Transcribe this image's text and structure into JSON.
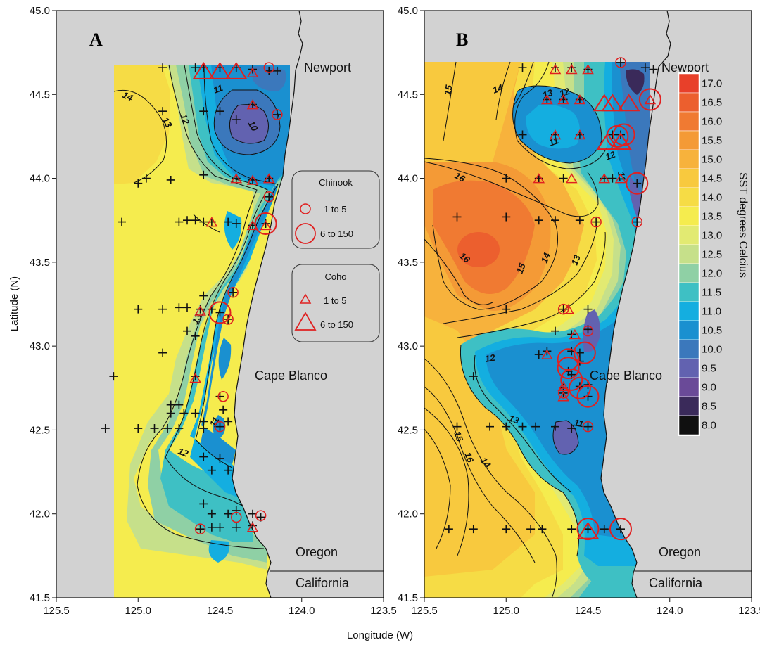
{
  "axes": {
    "x_label": "Longitude (W)",
    "y_label": "Latitude (N)",
    "x_ticks": [
      "125.5",
      "125.0",
      "124.5",
      "124.0",
      "123.5"
    ],
    "y_ticks": [
      "45.0",
      "44.5",
      "44.0",
      "43.5",
      "43.0",
      "42.5",
      "42.0",
      "41.5"
    ]
  },
  "panels": {
    "a": "A",
    "b": "B"
  },
  "places": {
    "newport": "Newport",
    "cape_blanco": "Cape Blanco",
    "oregon": "Oregon",
    "california": "California"
  },
  "legend": {
    "chinook_title": "Chinook",
    "chinook_small": "1 to 5",
    "chinook_large": "6 to 150",
    "coho_title": "Coho",
    "coho_small": "1 to 5",
    "coho_large": "6 to 150"
  },
  "colorbar": {
    "title": "SST degrees Celcius",
    "labels": [
      "17.0",
      "16.5",
      "16.0",
      "15.5",
      "15.0",
      "14.5",
      "14.0",
      "13.5",
      "13.0",
      "12.5",
      "12.0",
      "11.5",
      "11.0",
      "10.5",
      "10.0",
      "9.5",
      "9.0",
      "8.5",
      "8.0"
    ],
    "colors": [
      "#e8402a",
      "#ec5f2e",
      "#f07a32",
      "#f49a36",
      "#f7b23c",
      "#f8c93e",
      "#f6dc45",
      "#f5ec4e",
      "#e2ea72",
      "#c6e08a",
      "#8fd0a5",
      "#3ec0c4",
      "#14aee0",
      "#1a90d0",
      "#3b78bc",
      "#6262b0",
      "#6a4a98",
      "#3a2a5a",
      "#101010"
    ]
  },
  "panel_a_contours": [
    "14",
    "13",
    "12",
    "11",
    "10",
    "13",
    "11",
    "12",
    "13"
  ],
  "panel_b_contours": [
    "15",
    "14",
    "13",
    "12",
    "11",
    "12",
    "11",
    "16",
    "16",
    "15",
    "14",
    "13",
    "12",
    "13",
    "14",
    "15",
    "16",
    "11"
  ],
  "chart_data": {
    "type": "scatter",
    "xlabel": "Longitude (W)",
    "ylabel": "Latitude (N)",
    "xlim": [
      125.5,
      123.5
    ],
    "ylim": [
      41.5,
      45.0
    ],
    "panels": [
      {
        "name": "A",
        "stations": [
          [
            124.65,
            44.66
          ],
          [
            124.6,
            44.66
          ],
          [
            124.5,
            44.66
          ],
          [
            124.4,
            44.66
          ],
          [
            124.3,
            44.65
          ],
          [
            124.2,
            44.64
          ],
          [
            124.15,
            44.64
          ],
          [
            124.6,
            44.4
          ],
          [
            124.5,
            44.4
          ],
          [
            124.4,
            44.35
          ],
          [
            124.3,
            44.44
          ],
          [
            124.15,
            44.38
          ],
          [
            124.85,
            44.66
          ],
          [
            124.85,
            44.4
          ],
          [
            124.8,
            43.99
          ],
          [
            124.95,
            44.0
          ],
          [
            125.0,
            43.97
          ],
          [
            124.6,
            44.02
          ],
          [
            124.4,
            44.0
          ],
          [
            124.3,
            43.99
          ],
          [
            124.2,
            44.0
          ],
          [
            125.1,
            43.74
          ],
          [
            124.75,
            43.74
          ],
          [
            124.7,
            43.75
          ],
          [
            124.65,
            43.75
          ],
          [
            124.6,
            43.74
          ],
          [
            124.55,
            43.74
          ],
          [
            124.45,
            43.74
          ],
          [
            124.4,
            43.73
          ],
          [
            124.3,
            43.72
          ],
          [
            124.22,
            43.73
          ],
          [
            124.2,
            43.89
          ],
          [
            125.0,
            43.22
          ],
          [
            124.85,
            43.22
          ],
          [
            124.75,
            43.23
          ],
          [
            124.7,
            43.23
          ],
          [
            124.62,
            43.22
          ],
          [
            124.6,
            43.3
          ],
          [
            124.55,
            43.22
          ],
          [
            124.5,
            43.2
          ],
          [
            124.45,
            43.16
          ],
          [
            124.42,
            43.32
          ],
          [
            124.7,
            43.09
          ],
          [
            124.65,
            43.06
          ],
          [
            124.85,
            42.96
          ],
          [
            125.15,
            42.82
          ],
          [
            124.65,
            42.82
          ],
          [
            124.8,
            42.65
          ],
          [
            124.75,
            42.65
          ],
          [
            124.8,
            42.6
          ],
          [
            124.72,
            42.6
          ],
          [
            124.65,
            42.6
          ],
          [
            124.6,
            42.55
          ],
          [
            124.5,
            42.52
          ],
          [
            124.48,
            42.62
          ],
          [
            124.45,
            42.55
          ],
          [
            124.5,
            42.7
          ],
          [
            125.2,
            42.51
          ],
          [
            125.0,
            42.51
          ],
          [
            124.9,
            42.51
          ],
          [
            124.82,
            42.51
          ],
          [
            124.75,
            42.51
          ],
          [
            124.6,
            42.51
          ],
          [
            124.6,
            42.34
          ],
          [
            124.55,
            42.26
          ],
          [
            124.5,
            42.33
          ],
          [
            124.45,
            42.26
          ],
          [
            124.6,
            42.06
          ],
          [
            124.55,
            42.0
          ],
          [
            124.45,
            42.0
          ],
          [
            124.4,
            42.02
          ],
          [
            124.3,
            42.0
          ],
          [
            124.25,
            41.98
          ],
          [
            124.55,
            41.92
          ],
          [
            124.5,
            41.92
          ],
          [
            124.4,
            41.92
          ],
          [
            124.3,
            41.93
          ],
          [
            124.62,
            41.91
          ]
        ],
        "chinook": [
          {
            "lon": 124.2,
            "lat": 44.66,
            "n": "1 to 5"
          },
          {
            "lon": 124.15,
            "lat": 44.38,
            "n": "1 to 5"
          },
          {
            "lon": 124.2,
            "lat": 43.89,
            "n": "1 to 5"
          },
          {
            "lon": 124.22,
            "lat": 43.73,
            "n": "6 to 150"
          },
          {
            "lon": 124.42,
            "lat": 43.32,
            "n": "1 to 5"
          },
          {
            "lon": 124.5,
            "lat": 43.2,
            "n": "6 to 150"
          },
          {
            "lon": 124.45,
            "lat": 43.16,
            "n": "1 to 5"
          },
          {
            "lon": 124.48,
            "lat": 42.7,
            "n": "1 to 5"
          },
          {
            "lon": 124.5,
            "lat": 42.52,
            "n": "1 to 5"
          },
          {
            "lon": 124.4,
            "lat": 41.98,
            "n": "1 to 5"
          },
          {
            "lon": 124.25,
            "lat": 41.99,
            "n": "1 to 5"
          },
          {
            "lon": 124.62,
            "lat": 41.91,
            "n": "1 to 5"
          }
        ],
        "coho": [
          {
            "lon": 124.6,
            "lat": 44.64,
            "n": "6 to 150"
          },
          {
            "lon": 124.5,
            "lat": 44.64,
            "n": "6 to 150"
          },
          {
            "lon": 124.4,
            "lat": 44.64,
            "n": "6 to 150"
          },
          {
            "lon": 124.3,
            "lat": 44.63,
            "n": "1 to 5"
          },
          {
            "lon": 124.3,
            "lat": 44.44,
            "n": "1 to 5"
          },
          {
            "lon": 124.4,
            "lat": 44.0,
            "n": "1 to 5"
          },
          {
            "lon": 124.3,
            "lat": 43.99,
            "n": "1 to 5"
          },
          {
            "lon": 124.2,
            "lat": 44.0,
            "n": "1 to 5"
          },
          {
            "lon": 124.55,
            "lat": 43.74,
            "n": "1 to 5"
          },
          {
            "lon": 124.3,
            "lat": 43.72,
            "n": "1 to 5"
          },
          {
            "lon": 124.22,
            "lat": 43.72,
            "n": "1 to 5"
          },
          {
            "lon": 124.62,
            "lat": 43.21,
            "n": "1 to 5"
          },
          {
            "lon": 124.65,
            "lat": 42.81,
            "n": "1 to 5"
          },
          {
            "lon": 124.3,
            "lat": 41.92,
            "n": "1 to 5"
          }
        ]
      },
      {
        "name": "B",
        "stations": [
          [
            124.7,
            44.66
          ],
          [
            124.6,
            44.66
          ],
          [
            124.5,
            44.65
          ],
          [
            124.3,
            44.69
          ],
          [
            124.15,
            44.66
          ],
          [
            124.1,
            44.65
          ],
          [
            124.9,
            44.66
          ],
          [
            124.75,
            44.47
          ],
          [
            124.65,
            44.47
          ],
          [
            124.55,
            44.47
          ],
          [
            124.9,
            44.26
          ],
          [
            124.7,
            44.26
          ],
          [
            124.55,
            44.26
          ],
          [
            124.35,
            44.26
          ],
          [
            124.3,
            44.26
          ],
          [
            125.0,
            44.0
          ],
          [
            124.8,
            44.0
          ],
          [
            124.65,
            44.0
          ],
          [
            124.4,
            44.0
          ],
          [
            124.35,
            44.0
          ],
          [
            124.2,
            43.97
          ],
          [
            125.3,
            43.77
          ],
          [
            125.0,
            43.77
          ],
          [
            124.8,
            43.75
          ],
          [
            124.7,
            43.75
          ],
          [
            124.55,
            43.75
          ],
          [
            124.45,
            43.74
          ],
          [
            124.2,
            43.74
          ],
          [
            125.0,
            43.22
          ],
          [
            124.65,
            43.22
          ],
          [
            124.5,
            43.22
          ],
          [
            124.7,
            43.09
          ],
          [
            124.6,
            43.07
          ],
          [
            124.5,
            43.1
          ],
          [
            124.8,
            42.95
          ],
          [
            124.75,
            42.97
          ],
          [
            124.6,
            42.97
          ],
          [
            124.55,
            42.96
          ],
          [
            124.62,
            42.85
          ],
          [
            124.6,
            42.83
          ],
          [
            124.55,
            42.76
          ],
          [
            124.65,
            42.75
          ],
          [
            124.65,
            42.72
          ],
          [
            124.5,
            42.7
          ],
          [
            124.5,
            42.77
          ],
          [
            124.55,
            42.91
          ],
          [
            125.2,
            42.82
          ],
          [
            125.3,
            42.52
          ],
          [
            125.1,
            42.52
          ],
          [
            125.0,
            42.52
          ],
          [
            124.9,
            42.52
          ],
          [
            124.82,
            42.52
          ],
          [
            124.7,
            42.52
          ],
          [
            124.6,
            42.51
          ],
          [
            124.5,
            42.52
          ],
          [
            125.35,
            41.91
          ],
          [
            125.2,
            41.91
          ],
          [
            125.0,
            41.91
          ],
          [
            124.85,
            41.91
          ],
          [
            124.78,
            41.91
          ],
          [
            124.6,
            41.91
          ],
          [
            124.5,
            41.91
          ],
          [
            124.4,
            41.91
          ],
          [
            124.3,
            41.91
          ]
        ],
        "chinook": [
          {
            "lon": 124.3,
            "lat": 44.69,
            "n": "1 to 5"
          },
          {
            "lon": 124.12,
            "lat": 44.47,
            "n": "6 to 150"
          },
          {
            "lon": 124.28,
            "lat": 44.26,
            "n": "6 to 150"
          },
          {
            "lon": 124.32,
            "lat": 44.25,
            "n": "6 to 150"
          },
          {
            "lon": 124.2,
            "lat": 43.97,
            "n": "6 to 150"
          },
          {
            "lon": 124.45,
            "lat": 43.74,
            "n": "1 to 5"
          },
          {
            "lon": 124.2,
            "lat": 43.74,
            "n": "1 to 5"
          },
          {
            "lon": 124.65,
            "lat": 43.22,
            "n": "1 to 5"
          },
          {
            "lon": 124.5,
            "lat": 43.09,
            "n": "1 to 5"
          },
          {
            "lon": 124.52,
            "lat": 42.96,
            "n": "6 to 150"
          },
          {
            "lon": 124.62,
            "lat": 42.92,
            "n": "6 to 150"
          },
          {
            "lon": 124.62,
            "lat": 42.87,
            "n": "6 to 150"
          },
          {
            "lon": 124.6,
            "lat": 42.8,
            "n": "6 to 150"
          },
          {
            "lon": 124.55,
            "lat": 42.75,
            "n": "6 to 150"
          },
          {
            "lon": 124.5,
            "lat": 42.7,
            "n": "6 to 150"
          },
          {
            "lon": 124.65,
            "lat": 42.72,
            "n": "1 to 5"
          },
          {
            "lon": 124.5,
            "lat": 42.52,
            "n": "1 to 5"
          },
          {
            "lon": 124.5,
            "lat": 41.91,
            "n": "6 to 150"
          },
          {
            "lon": 124.3,
            "lat": 41.91,
            "n": "6 to 150"
          }
        ],
        "coho": [
          {
            "lon": 124.7,
            "lat": 44.65,
            "n": "1 to 5"
          },
          {
            "lon": 124.6,
            "lat": 44.65,
            "n": "1 to 5"
          },
          {
            "lon": 124.5,
            "lat": 44.65,
            "n": "1 to 5"
          },
          {
            "lon": 124.75,
            "lat": 44.47,
            "n": "1 to 5"
          },
          {
            "lon": 124.65,
            "lat": 44.47,
            "n": "1 to 5"
          },
          {
            "lon": 124.55,
            "lat": 44.47,
            "n": "1 to 5"
          },
          {
            "lon": 124.4,
            "lat": 44.45,
            "n": "6 to 150"
          },
          {
            "lon": 124.35,
            "lat": 44.45,
            "n": "6 to 150"
          },
          {
            "lon": 124.25,
            "lat": 44.45,
            "n": "6 to 150"
          },
          {
            "lon": 124.12,
            "lat": 44.47,
            "n": "1 to 5"
          },
          {
            "lon": 124.7,
            "lat": 44.26,
            "n": "1 to 5"
          },
          {
            "lon": 124.55,
            "lat": 44.26,
            "n": "1 to 5"
          },
          {
            "lon": 124.38,
            "lat": 44.22,
            "n": "6 to 150"
          },
          {
            "lon": 124.3,
            "lat": 44.22,
            "n": "6 to 150"
          },
          {
            "lon": 124.8,
            "lat": 44.0,
            "n": "1 to 5"
          },
          {
            "lon": 124.6,
            "lat": 44.0,
            "n": "1 to 5"
          },
          {
            "lon": 124.4,
            "lat": 44.0,
            "n": "1 to 5"
          },
          {
            "lon": 124.3,
            "lat": 44.0,
            "n": "1 to 5"
          },
          {
            "lon": 124.62,
            "lat": 43.22,
            "n": "1 to 5"
          },
          {
            "lon": 124.58,
            "lat": 43.07,
            "n": "1 to 5"
          },
          {
            "lon": 124.75,
            "lat": 42.95,
            "n": "1 to 5"
          },
          {
            "lon": 124.65,
            "lat": 42.76,
            "n": "1 to 5"
          },
          {
            "lon": 124.65,
            "lat": 42.7,
            "n": "1 to 5"
          },
          {
            "lon": 124.5,
            "lat": 41.9,
            "n": "6 to 150"
          }
        ]
      }
    ]
  }
}
